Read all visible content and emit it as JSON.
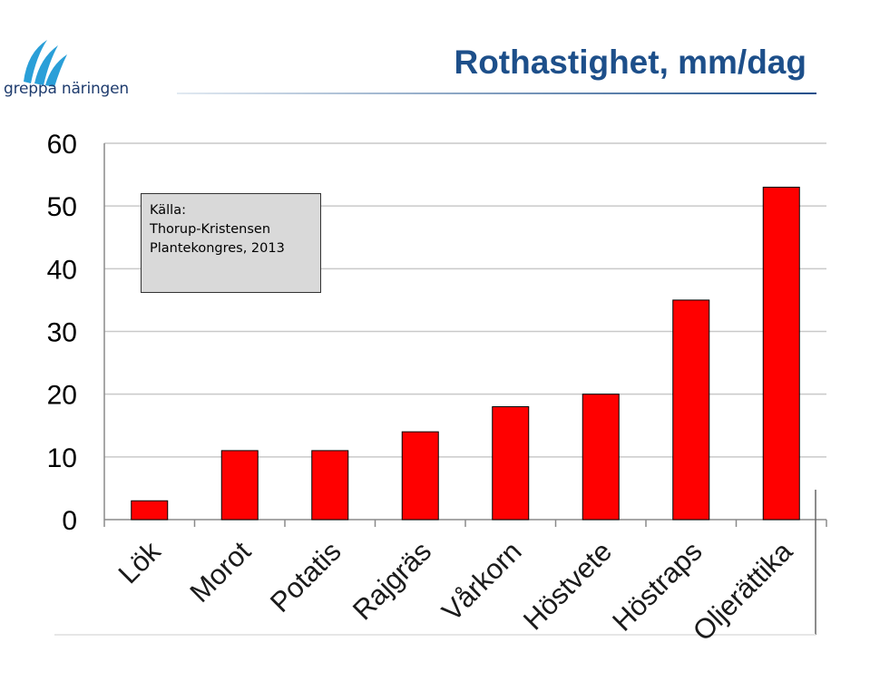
{
  "logo": {
    "text": "greppa näringen",
    "icon": "stripe-wave-logo"
  },
  "title": "Rothastighet, mm/dag",
  "source_note": [
    "Källa:",
    "Thorup-Kristensen",
    "Plantekongres, 2013"
  ],
  "colors": {
    "bar": "#ff0000",
    "bar_stroke": "#000000",
    "title": "#1d4f8a",
    "grid": "#c9c9c9"
  },
  "chart_data": {
    "type": "bar",
    "title": "Rothastighet, mm/dag",
    "xlabel": "",
    "ylabel": "",
    "categories": [
      "Lök",
      "Morot",
      "Potatis",
      "Rajgräs",
      "Vårkorn",
      "Höstvete",
      "Höstraps",
      "Oljerättika"
    ],
    "values": [
      3,
      11,
      11,
      14,
      18,
      20,
      35,
      53
    ],
    "ylim": [
      0,
      60
    ],
    "yticks": [
      0,
      10,
      20,
      30,
      40,
      50,
      60
    ],
    "grid": true,
    "legend": "none"
  }
}
